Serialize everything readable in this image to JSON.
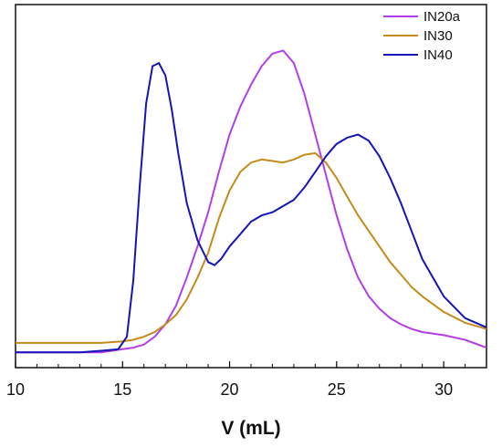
{
  "chart_data": {
    "type": "line",
    "title": "",
    "xlabel": "V (mL)",
    "ylabel": "",
    "xlim": [
      10,
      32
    ],
    "ylim": [
      0,
      1
    ],
    "x_ticks": [
      10,
      15,
      20,
      25,
      30
    ],
    "x_tick_labels": [
      "10",
      "15",
      "20",
      "25",
      "30"
    ],
    "grid": false,
    "legend_position": "top-right",
    "series": [
      {
        "name": "IN20a",
        "color": "#b23ee6",
        "x": [
          10,
          11,
          12,
          13,
          14,
          15,
          15.5,
          16,
          16.5,
          17,
          17.5,
          18,
          18.5,
          19,
          19.5,
          20,
          20.5,
          21,
          21.5,
          22,
          22.5,
          23,
          23.5,
          24,
          24.5,
          25,
          25.5,
          26,
          26.5,
          27,
          27.5,
          28,
          28.5,
          29,
          30,
          31,
          32
        ],
        "values": [
          0.02,
          0.02,
          0.02,
          0.02,
          0.02,
          0.03,
          0.035,
          0.045,
          0.07,
          0.11,
          0.17,
          0.26,
          0.36,
          0.47,
          0.6,
          0.72,
          0.81,
          0.88,
          0.94,
          0.98,
          0.99,
          0.95,
          0.85,
          0.72,
          0.59,
          0.46,
          0.35,
          0.26,
          0.2,
          0.16,
          0.13,
          0.11,
          0.095,
          0.085,
          0.075,
          0.06,
          0.035
        ]
      },
      {
        "name": "IN30",
        "color": "#c58a1a",
        "x": [
          10,
          11,
          12,
          13,
          14,
          15,
          15.5,
          16,
          16.5,
          17,
          17.5,
          18,
          18.5,
          19,
          19.5,
          20,
          20.5,
          21,
          21.5,
          22,
          22.5,
          23,
          23.5,
          24,
          24.5,
          25,
          25.5,
          26,
          26.5,
          27,
          27.5,
          28,
          28.5,
          29,
          30,
          31,
          32
        ],
        "values": [
          0.05,
          0.05,
          0.05,
          0.05,
          0.05,
          0.055,
          0.06,
          0.07,
          0.085,
          0.11,
          0.14,
          0.19,
          0.26,
          0.34,
          0.45,
          0.54,
          0.6,
          0.63,
          0.64,
          0.635,
          0.63,
          0.64,
          0.655,
          0.66,
          0.63,
          0.58,
          0.52,
          0.46,
          0.41,
          0.36,
          0.31,
          0.27,
          0.23,
          0.2,
          0.15,
          0.115,
          0.095
        ]
      },
      {
        "name": "IN40",
        "color": "#1414b8",
        "x": [
          10,
          11,
          12,
          13,
          14,
          14.8,
          15.2,
          15.5,
          15.8,
          16.1,
          16.4,
          16.7,
          17,
          17.3,
          17.6,
          18,
          18.5,
          19,
          19.3,
          19.6,
          20,
          20.5,
          21,
          21.5,
          22,
          22.5,
          23,
          23.5,
          24,
          24.5,
          25,
          25.5,
          26,
          26.5,
          27,
          27.5,
          28,
          28.5,
          29,
          30,
          31,
          32
        ],
        "values": [
          0.02,
          0.02,
          0.02,
          0.02,
          0.025,
          0.03,
          0.07,
          0.25,
          0.55,
          0.82,
          0.94,
          0.95,
          0.91,
          0.8,
          0.66,
          0.5,
          0.38,
          0.31,
          0.3,
          0.32,
          0.36,
          0.4,
          0.44,
          0.46,
          0.47,
          0.49,
          0.51,
          0.55,
          0.6,
          0.65,
          0.69,
          0.71,
          0.72,
          0.7,
          0.65,
          0.58,
          0.5,
          0.41,
          0.32,
          0.2,
          0.13,
          0.1
        ]
      }
    ]
  }
}
